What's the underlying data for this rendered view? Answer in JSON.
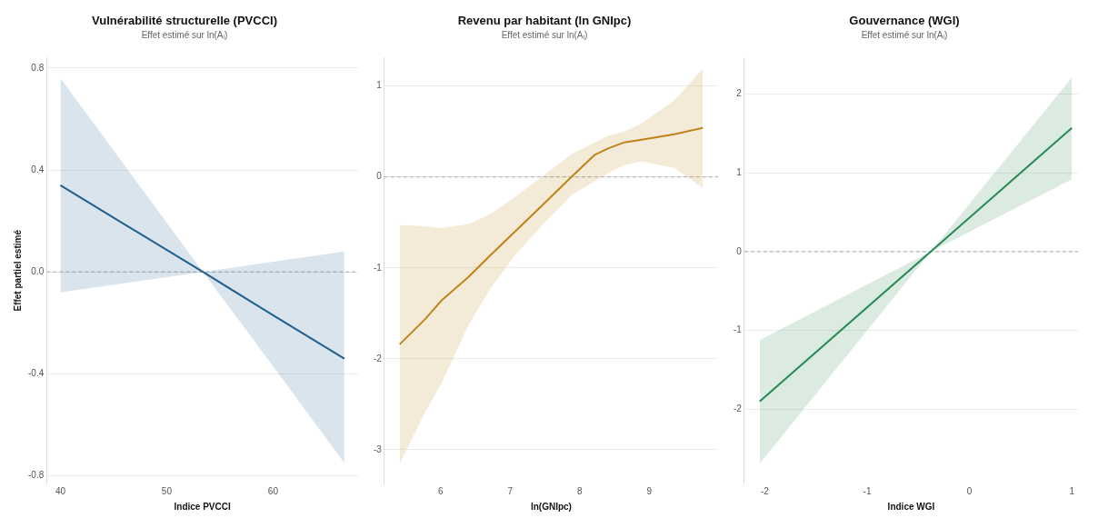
{
  "chart_data": [
    {
      "type": "line",
      "title": "Vulnérabilité structurelle (PVCCI)",
      "subtitle": "Effet estimé sur ln(Aᵢ)",
      "xlabel": "Indice PVCCI",
      "ylabel": "Effet partiel estimé",
      "x": [
        40,
        46.7,
        53.4,
        60,
        66.7
      ],
      "series": [
        {
          "color": "#21608e",
          "values": [
            0.34,
            0.17,
            0,
            -0.17,
            -0.34
          ],
          "lower": [
            -0.08,
            -0.04,
            0,
            -0.37,
            -0.75
          ],
          "upper": [
            0.76,
            0.38,
            0,
            0.04,
            0.08
          ]
        }
      ],
      "xlim": [
        38.7,
        68
      ],
      "ylim": [
        -0.83,
        0.84
      ],
      "xticks": [
        40,
        50,
        60
      ],
      "yticks": [
        -0.8,
        -0.4,
        {
          "value": 0,
          "label": "0.0"
        },
        0.4,
        0.8
      ],
      "grid": "y",
      "legend": false,
      "ref_lines": [
        {
          "axis": "y",
          "value": 0,
          "color": "#aaaaaa",
          "line_style": "dashed"
        }
      ]
    },
    {
      "type": "line",
      "title": "Revenu par habitant (ln GNIpc)",
      "subtitle": "Effet estimé sur ln(Aᵢ)",
      "xlabel": "ln(GNIpc)",
      "x": [
        5.41,
        5.78,
        6.01,
        6.4,
        6.73,
        7.07,
        7.45,
        7.88,
        8.21,
        8.4,
        8.64,
        8.89,
        9.36,
        9.77
      ],
      "series": [
        {
          "color": "#c0841a",
          "values": [
            -1.84,
            -1.56,
            -1.36,
            -1.1,
            -0.85,
            -0.6,
            -0.32,
            0,
            0.24,
            0.31,
            0.38,
            0.41,
            0.47,
            0.54
          ],
          "lower": [
            -3.15,
            -2.58,
            -2.27,
            -1.63,
            -1.21,
            -0.86,
            -0.54,
            -0.2,
            -0.05,
            0.04,
            0.13,
            0.17,
            0.1,
            -0.12
          ],
          "upper": [
            -0.53,
            -0.54,
            -0.56,
            -0.52,
            -0.4,
            -0.22,
            0,
            0.25,
            0.38,
            0.45,
            0.5,
            0.59,
            0.84,
            1.19
          ]
        }
      ],
      "xlim": [
        5.19,
        9.99
      ],
      "ylim": [
        -3.37,
        1.31
      ],
      "xticks": [
        6,
        7,
        8,
        9
      ],
      "yticks": [
        -3,
        -2,
        -1,
        0,
        1
      ],
      "grid": "y",
      "legend": false,
      "ref_lines": [
        {
          "axis": "y",
          "value": 0,
          "color": "#aaaaaa",
          "line_style": "dashed"
        }
      ]
    },
    {
      "type": "line",
      "title": "Gouvernance (WGI)",
      "subtitle": "Effet estimé sur ln(Aᵢ)",
      "xlabel": "Indice WGI",
      "x": [
        -2.05,
        -0.38,
        1.0
      ],
      "series": [
        {
          "color": "#2a8a55",
          "values": [
            -1.9,
            0,
            1.57
          ],
          "lower": [
            -2.69,
            0,
            0.92
          ],
          "upper": [
            -1.12,
            0,
            2.21
          ]
        }
      ],
      "xlim": [
        -2.2,
        1.06
      ],
      "ylim": [
        -2.94,
        2.46
      ],
      "xticks": [
        -2,
        -1,
        0,
        1
      ],
      "yticks": [
        -2,
        -1,
        0,
        1,
        2
      ],
      "grid": "y",
      "legend": false,
      "ref_lines": [
        {
          "axis": "y",
          "value": 0,
          "color": "#aaaaaa",
          "line_style": "dashed"
        }
      ]
    }
  ]
}
